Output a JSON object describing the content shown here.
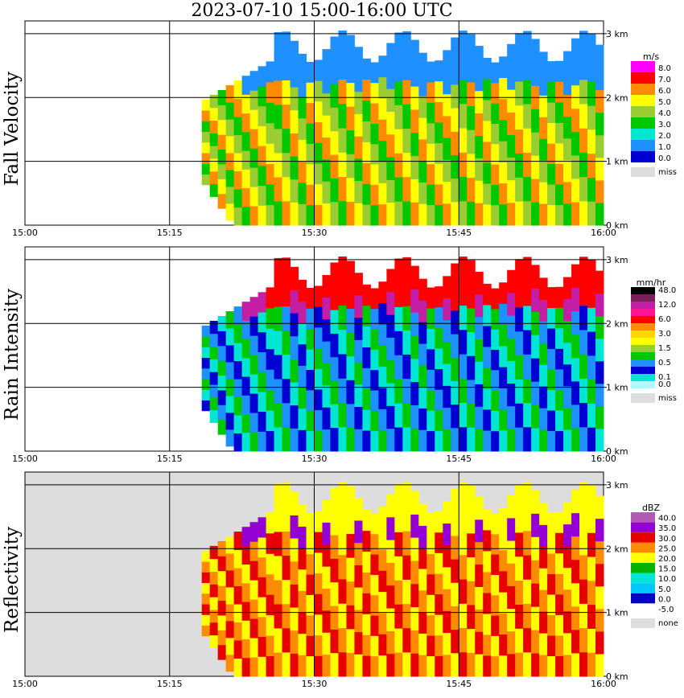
{
  "title": "2023-07-10  15:00-16:00 UTC",
  "colors": {
    "missing_gray": "#dddddd",
    "gridline": "#000000"
  },
  "chart_data": [
    {
      "type": "heatmap",
      "name": "Fall Velocity",
      "ylabel": "Fall Velocity",
      "x_ticks": [
        "15:00",
        "15:15",
        "15:30",
        "15:45",
        "16:00"
      ],
      "x_range": [
        "15:00",
        "16:00"
      ],
      "y_ticks": [
        "0 km",
        "1 km",
        "2 km",
        "3 km"
      ],
      "y_range_km": [
        0,
        3.2
      ],
      "grid": true,
      "missing_color": "#ffffff",
      "legend": {
        "unit": "m/s",
        "entries": [
          {
            "label": "8.0",
            "color": "#ff00ff"
          },
          {
            "label": "7.0",
            "color": "#ff0000"
          },
          {
            "label": "6.0",
            "color": "#ff8c00"
          },
          {
            "label": "5.0",
            "color": "#ffff00"
          },
          {
            "label": "4.0",
            "color": "#9acd32"
          },
          {
            "label": "3.0",
            "color": "#00c800"
          },
          {
            "label": "2.0",
            "color": "#00e6d2"
          },
          {
            "label": "1.0",
            "color": "#1e90ff"
          },
          {
            "label": "0.0",
            "color": "#0000d2"
          }
        ],
        "missing_label": "miss",
        "missing_color": "#dddddd"
      }
    },
    {
      "type": "heatmap",
      "name": "Rain Intensity",
      "ylabel": "Rain Intensity",
      "x_ticks": [
        "15:00",
        "15:15",
        "15:30",
        "15:45",
        "16:00"
      ],
      "x_range": [
        "15:00",
        "16:00"
      ],
      "y_ticks": [
        "0 km",
        "1 km",
        "2 km",
        "3 km"
      ],
      "y_range_km": [
        0,
        3.2
      ],
      "grid": true,
      "missing_color": "#ffffff",
      "legend": {
        "unit": "mm/hr",
        "entries": [
          {
            "label": "48.0",
            "color": "#000000"
          },
          {
            "label": "",
            "color": "#7a1f5a"
          },
          {
            "label": "12.0",
            "color": "#c31fa5"
          },
          {
            "label": "",
            "color": "#ff1493"
          },
          {
            "label": "6.0",
            "color": "#ff0000"
          },
          {
            "label": "",
            "color": "#ff8c00"
          },
          {
            "label": "3.0",
            "color": "#ffd700"
          },
          {
            "label": "",
            "color": "#ffff00"
          },
          {
            "label": "1.5",
            "color": "#9acd32"
          },
          {
            "label": "",
            "color": "#00c800"
          },
          {
            "label": "0.5",
            "color": "#1e90ff"
          },
          {
            "label": "",
            "color": "#0000d2"
          },
          {
            "label": "0.1",
            "color": "#00e6d2"
          },
          {
            "label": "0.0",
            "color": "#aefaff"
          }
        ],
        "missing_label": "miss",
        "missing_color": "#dddddd"
      }
    },
    {
      "type": "heatmap",
      "name": "Reflectivity",
      "ylabel": "Reflectivity",
      "x_ticks": [
        "15:00",
        "15:15",
        "15:30",
        "15:45",
        "16:00"
      ],
      "x_range": [
        "15:00",
        "16:00"
      ],
      "y_ticks": [
        "0 km",
        "1 km",
        "2 km",
        "3 km"
      ],
      "y_range_km": [
        0,
        3.2
      ],
      "grid": true,
      "missing_color": "#dddddd",
      "legend": {
        "unit": "dBZ",
        "entries": [
          {
            "label": "40.0",
            "color": "#b45ab4"
          },
          {
            "label": "35.0",
            "color": "#9400d3"
          },
          {
            "label": "30.0",
            "color": "#e60000"
          },
          {
            "label": "25.0",
            "color": "#ff8c00"
          },
          {
            "label": "20.0",
            "color": "#ffff00"
          },
          {
            "label": "15.0",
            "color": "#00b400"
          },
          {
            "label": "10.0",
            "color": "#00e6d2"
          },
          {
            "label": "5.0",
            "color": "#00c8ff"
          },
          {
            "label": "0.0",
            "color": "#0000c8"
          },
          {
            "label": "-5.0",
            "color": "#ffffff"
          }
        ],
        "missing_label": "none",
        "missing_color": "#dddddd"
      }
    }
  ]
}
